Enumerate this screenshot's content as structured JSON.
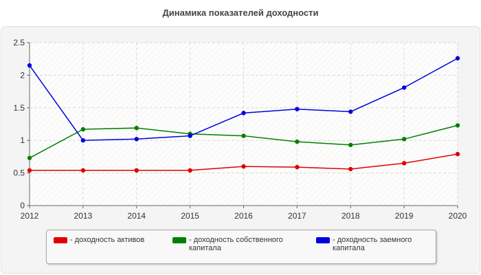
{
  "chart_data": {
    "type": "line",
    "title": "Динамика показателей доходности",
    "xlabel": "",
    "ylabel": "",
    "x": [
      "2012",
      "2013",
      "2014",
      "2015",
      "2016",
      "2017",
      "2018",
      "2019",
      "2020"
    ],
    "ylim": [
      0,
      2.5
    ],
    "yticks": [
      "0",
      "0.5",
      "1",
      "1.5",
      "2",
      "2.5"
    ],
    "grid": true,
    "legend_position": "bottom",
    "series": [
      {
        "name": "- доходность активов",
        "color": "#e00000",
        "values": [
          0.54,
          0.54,
          0.54,
          0.54,
          0.6,
          0.59,
          0.56,
          0.65,
          0.79
        ]
      },
      {
        "name": "- доходность собственного капитала",
        "color": "#008000",
        "values": [
          0.73,
          1.17,
          1.19,
          1.1,
          1.07,
          0.98,
          0.93,
          1.02,
          1.23
        ]
      },
      {
        "name": "- доходность заемного капитала",
        "color": "#0000e0",
        "values": [
          2.15,
          1.0,
          1.02,
          1.07,
          1.42,
          1.48,
          1.44,
          1.81,
          2.26
        ]
      }
    ]
  }
}
